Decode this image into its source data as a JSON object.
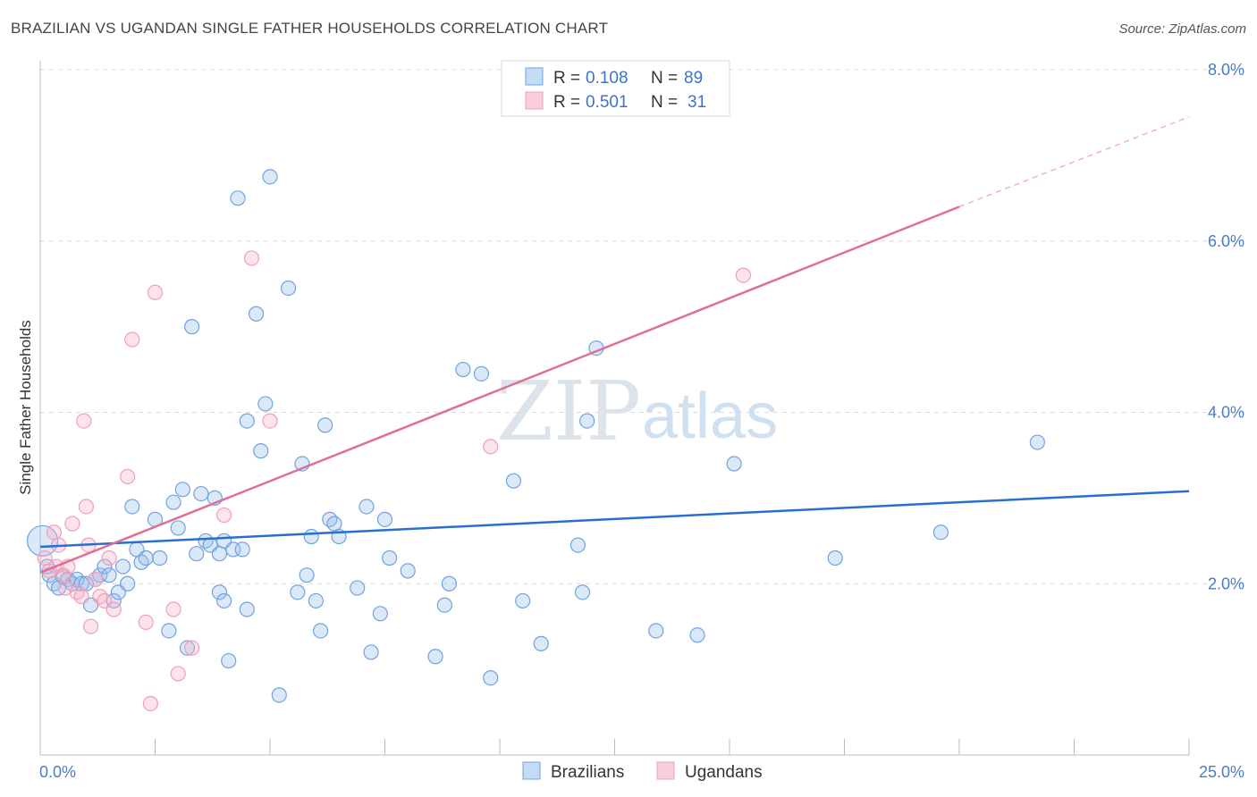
{
  "title": "BRAZILIAN VS UGANDAN SINGLE FATHER HOUSEHOLDS CORRELATION CHART",
  "source": "Source: ZipAtlas.com",
  "watermark": {
    "zip": "ZIP",
    "atlas": "atlas"
  },
  "colors": {
    "brazilians": "#6fa3e0",
    "ugandans": "#ef9fbb",
    "blue_line": "#2a6fcf",
    "pink_line": "#e06f98",
    "tick_text": "#4a7cc7"
  },
  "legend_top": {
    "rows": [
      {
        "r_label": "R =",
        "r_value": "0.108",
        "n_label": "N =",
        "n_value": "89"
      },
      {
        "r_label": "R =",
        "r_value": "0.501",
        "n_label": "N =",
        "n_value": "31"
      }
    ]
  },
  "legend_bottom": [
    "Brazilians",
    "Ugandans"
  ],
  "chart_data": {
    "type": "scatter",
    "title": "BRAZILIAN VS UGANDAN SINGLE FATHER HOUSEHOLDS CORRELATION CHART",
    "xlabel": "",
    "ylabel": "Single Father Households",
    "xlim": [
      0,
      25
    ],
    "ylim": [
      0,
      8
    ],
    "x_tick_labels": [
      "0.0%",
      "25.0%"
    ],
    "y_ticks": [
      2,
      4,
      6,
      8
    ],
    "y_tick_labels": [
      "2.0%",
      "4.0%",
      "6.0%",
      "8.0%"
    ],
    "grid": "horizontal dashed",
    "legend_placement": "top-center",
    "series": [
      {
        "name": "Brazilians",
        "stats": {
          "R": 0.108,
          "N": 89
        },
        "trend": {
          "x": [
            0,
            25
          ],
          "y": [
            2.43,
            3.08
          ]
        },
        "points": [
          [
            0.05,
            2.5
          ],
          [
            0.2,
            2.1
          ],
          [
            0.3,
            2.0
          ],
          [
            0.4,
            1.95
          ],
          [
            0.5,
            2.08
          ],
          [
            0.6,
            2.05
          ],
          [
            0.7,
            2.0
          ],
          [
            0.8,
            2.05
          ],
          [
            0.9,
            2.0
          ],
          [
            1.0,
            2.0
          ],
          [
            1.1,
            1.75
          ],
          [
            1.2,
            2.05
          ],
          [
            1.3,
            2.1
          ],
          [
            1.4,
            2.2
          ],
          [
            1.5,
            2.1
          ],
          [
            1.6,
            1.8
          ],
          [
            1.7,
            1.9
          ],
          [
            1.8,
            2.2
          ],
          [
            1.9,
            2.0
          ],
          [
            2.0,
            2.9
          ],
          [
            2.1,
            2.4
          ],
          [
            2.2,
            2.25
          ],
          [
            2.3,
            2.3
          ],
          [
            2.5,
            2.75
          ],
          [
            2.6,
            2.3
          ],
          [
            2.8,
            1.45
          ],
          [
            2.9,
            2.95
          ],
          [
            3.0,
            2.65
          ],
          [
            3.1,
            3.1
          ],
          [
            3.2,
            1.25
          ],
          [
            3.3,
            5.0
          ],
          [
            3.4,
            2.35
          ],
          [
            3.5,
            3.05
          ],
          [
            3.6,
            2.5
          ],
          [
            3.7,
            2.45
          ],
          [
            3.8,
            3.0
          ],
          [
            3.9,
            2.35
          ],
          [
            4.0,
            2.5
          ],
          [
            3.9,
            1.9
          ],
          [
            4.0,
            1.8
          ],
          [
            4.2,
            2.4
          ],
          [
            4.1,
            1.1
          ],
          [
            4.3,
            6.5
          ],
          [
            4.4,
            2.4
          ],
          [
            4.5,
            1.7
          ],
          [
            4.5,
            3.9
          ],
          [
            4.7,
            5.15
          ],
          [
            4.8,
            3.55
          ],
          [
            4.9,
            4.1
          ],
          [
            5.0,
            6.75
          ],
          [
            5.2,
            0.7
          ],
          [
            5.4,
            5.45
          ],
          [
            5.7,
            3.4
          ],
          [
            5.6,
            1.9
          ],
          [
            5.8,
            2.1
          ],
          [
            5.9,
            2.55
          ],
          [
            6.0,
            1.8
          ],
          [
            6.1,
            1.45
          ],
          [
            6.3,
            2.75
          ],
          [
            6.4,
            2.7
          ],
          [
            6.5,
            2.55
          ],
          [
            6.2,
            3.85
          ],
          [
            6.9,
            1.95
          ],
          [
            7.1,
            2.9
          ],
          [
            7.2,
            1.2
          ],
          [
            7.4,
            1.65
          ],
          [
            7.5,
            2.75
          ],
          [
            7.6,
            2.3
          ],
          [
            8.0,
            2.15
          ],
          [
            8.6,
            1.15
          ],
          [
            8.8,
            1.75
          ],
          [
            8.9,
            2.0
          ],
          [
            9.2,
            4.5
          ],
          [
            9.6,
            4.45
          ],
          [
            9.8,
            0.9
          ],
          [
            10.3,
            3.2
          ],
          [
            10.5,
            1.8
          ],
          [
            10.9,
            1.3
          ],
          [
            11.7,
            2.45
          ],
          [
            11.8,
            1.9
          ],
          [
            11.9,
            3.9
          ],
          [
            12.1,
            4.75
          ],
          [
            13.4,
            1.45
          ],
          [
            14.3,
            1.4
          ],
          [
            15.1,
            3.4
          ],
          [
            17.3,
            2.3
          ],
          [
            19.6,
            2.6
          ],
          [
            21.7,
            3.65
          ],
          [
            0.15,
            2.2
          ]
        ]
      },
      {
        "name": "Ugandans",
        "stats": {
          "R": 0.501,
          "N": 31
        },
        "trend": {
          "x": [
            0,
            20
          ],
          "y": [
            2.13,
            6.4
          ]
        },
        "trend_dashed": {
          "x": [
            20,
            25
          ],
          "y": [
            6.4,
            7.45
          ]
        },
        "points": [
          [
            0.1,
            2.3
          ],
          [
            0.2,
            2.15
          ],
          [
            0.3,
            2.6
          ],
          [
            0.35,
            2.2
          ],
          [
            0.4,
            2.45
          ],
          [
            0.5,
            2.1
          ],
          [
            0.55,
            1.95
          ],
          [
            0.6,
            2.2
          ],
          [
            0.7,
            2.7
          ],
          [
            0.8,
            1.9
          ],
          [
            0.9,
            1.85
          ],
          [
            0.95,
            3.9
          ],
          [
            1.0,
            2.9
          ],
          [
            1.05,
            2.45
          ],
          [
            1.1,
            1.5
          ],
          [
            1.2,
            2.05
          ],
          [
            1.3,
            1.85
          ],
          [
            1.4,
            1.8
          ],
          [
            1.5,
            2.3
          ],
          [
            1.6,
            1.7
          ],
          [
            1.9,
            3.25
          ],
          [
            2.0,
            4.85
          ],
          [
            2.3,
            1.55
          ],
          [
            2.4,
            0.6
          ],
          [
            2.5,
            5.4
          ],
          [
            2.9,
            1.7
          ],
          [
            3.0,
            0.95
          ],
          [
            3.3,
            1.25
          ],
          [
            4.0,
            2.8
          ],
          [
            4.6,
            5.8
          ],
          [
            5.0,
            3.9
          ]
        ]
      }
    ],
    "extra_ugandan_points": [
      [
        9.8,
        3.6
      ],
      [
        15.3,
        5.6
      ]
    ]
  }
}
